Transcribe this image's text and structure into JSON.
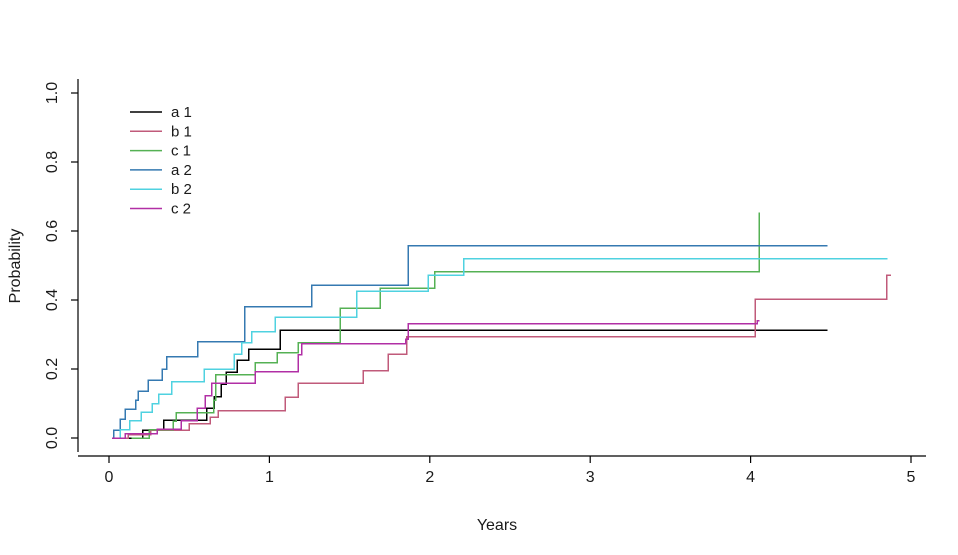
{
  "chart_data": {
    "type": "line",
    "subtype": "step-after",
    "title": "",
    "xlabel": "Years",
    "ylabel": "Probability",
    "xlim": [
      0,
      5
    ],
    "ylim": [
      0.0,
      1.0
    ],
    "x_ticks": [
      "0",
      "1",
      "2",
      "3",
      "4",
      "5"
    ],
    "y_ticks": [
      "0.0",
      "0.2",
      "0.4",
      "0.6",
      "0.8",
      "1.0"
    ],
    "grid": false,
    "legend_position": "top-left-inside",
    "series": [
      {
        "name": "a 1",
        "color": "#000000",
        "points": [
          [
            0.11,
            0
          ],
          [
            0.21,
            0.023
          ],
          [
            0.34,
            0.052
          ],
          [
            0.61,
            0.086
          ],
          [
            0.655,
            0.12
          ],
          [
            0.7,
            0.156
          ],
          [
            0.73,
            0.19
          ],
          [
            0.8,
            0.226
          ],
          [
            0.87,
            0.257
          ],
          [
            1.066,
            0.313
          ],
          [
            4.478,
            0.313
          ]
        ]
      },
      {
        "name": "b 1",
        "color": "#c05a7a",
        "points": [
          [
            0.1,
            0
          ],
          [
            0.12,
            0.01
          ],
          [
            0.26,
            0.023
          ],
          [
            0.5,
            0.042
          ],
          [
            0.63,
            0.06
          ],
          [
            0.68,
            0.079
          ],
          [
            1.097,
            0.118
          ],
          [
            1.18,
            0.159
          ],
          [
            1.585,
            0.195
          ],
          [
            1.74,
            0.2435
          ],
          [
            1.856,
            0.294
          ],
          [
            4.03,
            0.403
          ],
          [
            4.85,
            0.4725
          ],
          [
            4.875,
            0.4725
          ]
        ]
      },
      {
        "name": "c 1",
        "color": "#55b154",
        "points": [
          [
            0.14,
            0
          ],
          [
            0.25,
            0.024
          ],
          [
            0.4,
            0.048
          ],
          [
            0.42,
            0.073
          ],
          [
            0.653,
            0.11
          ],
          [
            0.665,
            0.183
          ],
          [
            0.91,
            0.218
          ],
          [
            1.05,
            0.247
          ],
          [
            1.18,
            0.276
          ],
          [
            1.44,
            0.376
          ],
          [
            1.69,
            0.434
          ],
          [
            2.03,
            0.482
          ],
          [
            4.054,
            0.482
          ],
          [
            4.054,
            0.653
          ]
        ]
      },
      {
        "name": "a 2",
        "color": "#3579b1",
        "points": [
          [
            0.02,
            0
          ],
          [
            0.03,
            0.023
          ],
          [
            0.07,
            0.054
          ],
          [
            0.1,
            0.084
          ],
          [
            0.166,
            0.11
          ],
          [
            0.183,
            0.136
          ],
          [
            0.245,
            0.168
          ],
          [
            0.332,
            0.199
          ],
          [
            0.36,
            0.236
          ],
          [
            0.553,
            0.279
          ],
          [
            0.845,
            0.381
          ],
          [
            1.265,
            0.443
          ],
          [
            1.864,
            0.557
          ],
          [
            4.478,
            0.557
          ]
        ]
      },
      {
        "name": "b 2",
        "color": "#4fd2e0",
        "points": [
          [
            0.04,
            0
          ],
          [
            0.07,
            0.024
          ],
          [
            0.13,
            0.05
          ],
          [
            0.2,
            0.075
          ],
          [
            0.27,
            0.1
          ],
          [
            0.31,
            0.127
          ],
          [
            0.39,
            0.163
          ],
          [
            0.594,
            0.199
          ],
          [
            0.781,
            0.243
          ],
          [
            0.827,
            0.276
          ],
          [
            0.89,
            0.308
          ],
          [
            1.035,
            0.35
          ],
          [
            1.544,
            0.426
          ],
          [
            1.99,
            0.472
          ],
          [
            2.21,
            0.519
          ],
          [
            4.855,
            0.519
          ]
        ]
      },
      {
        "name": "c 2",
        "color": "#b12fa5",
        "points": [
          [
            0.02,
            0
          ],
          [
            0.1,
            0.012
          ],
          [
            0.3,
            0.025
          ],
          [
            0.45,
            0.05
          ],
          [
            0.55,
            0.086
          ],
          [
            0.6,
            0.122
          ],
          [
            0.64,
            0.159
          ],
          [
            0.91,
            0.192
          ],
          [
            1.18,
            0.241
          ],
          [
            1.2,
            0.274
          ],
          [
            1.85,
            0.287
          ],
          [
            1.866,
            0.332
          ],
          [
            4.04,
            0.34
          ],
          [
            4.054,
            0.34
          ]
        ]
      }
    ]
  }
}
